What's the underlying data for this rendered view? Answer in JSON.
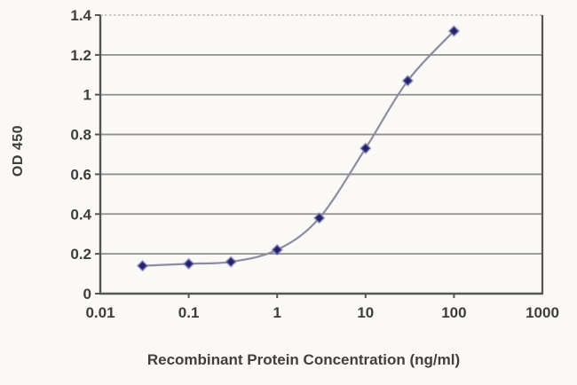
{
  "chart_data": {
    "type": "line",
    "title": "",
    "xlabel": "Recombinant Protein Concentration (ng/ml)",
    "ylabel": "OD 450",
    "x_scale": "log",
    "xlim": [
      0.01,
      1000
    ],
    "ylim": [
      0,
      1.4
    ],
    "x": [
      0.03,
      0.1,
      0.3,
      1,
      3,
      10,
      30,
      100
    ],
    "values": [
      0.14,
      0.15,
      0.16,
      0.22,
      0.38,
      0.73,
      1.07,
      1.32
    ],
    "x_tick_values": [
      0.01,
      0.1,
      1,
      10,
      100,
      1000
    ],
    "x_tick_labels": [
      "0.01",
      "0.1",
      "1",
      "10",
      "100",
      "1000"
    ],
    "y_tick_values": [
      0,
      0.2,
      0.4,
      0.6,
      0.8,
      1.0,
      1.2,
      1.4
    ],
    "y_tick_labels": [
      "0",
      "0.2",
      "0.4",
      "0.6",
      "0.8",
      "1",
      "1.2",
      "1.4"
    ],
    "grid": "horizontal",
    "legend": "none",
    "marker": "diamond",
    "line_style": "smooth",
    "colors": {
      "background": "#fbf9f6",
      "axis": "#555555",
      "gridline": "#8e8e8e",
      "top_border_dotted": "#b5b5b5",
      "line": "#8d8ca1",
      "marker": "#232269",
      "marker_halo": "#8a8ac2",
      "text": "#3d3d3d"
    }
  }
}
